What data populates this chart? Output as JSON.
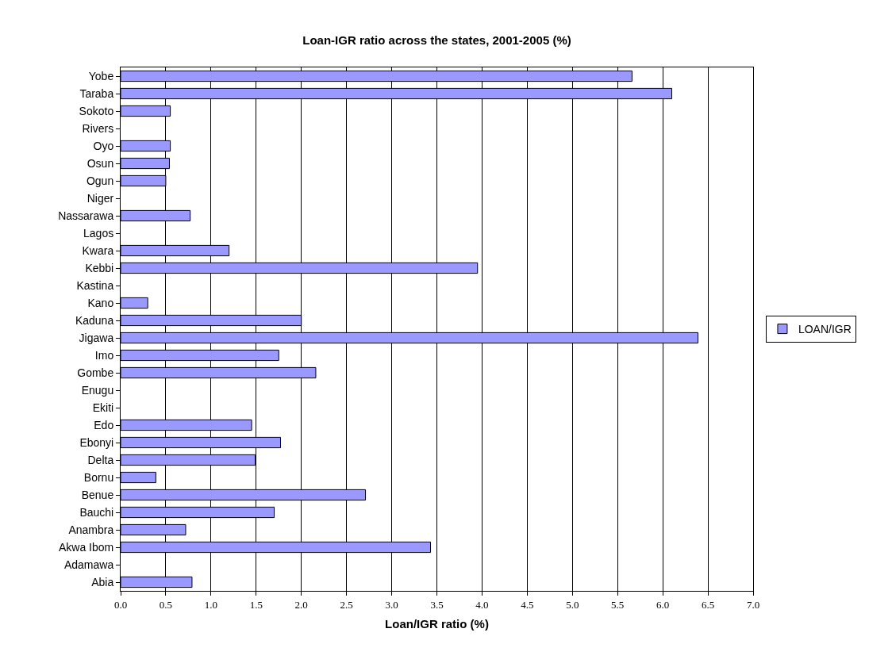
{
  "chart_data": {
    "type": "bar",
    "orientation": "horizontal",
    "title": "Loan-IGR ratio across the states, 2001-2005 (%)",
    "xlabel": "Loan/IGR ratio (%)",
    "categories": [
      "Yobe",
      "Taraba",
      "Sokoto",
      "Rivers",
      "Oyo",
      "Osun",
      "Ogun",
      "Niger",
      "Nassarawa",
      "Lagos",
      "Kwara",
      "Kebbi",
      "Kastina",
      "Kano",
      "Kaduna",
      "Jigawa",
      "Imo",
      "Gombe",
      "Enugu",
      "Ekiti",
      "Edo",
      "Ebonyi",
      "Delta",
      "Bornu",
      "Benue",
      "Bauchi",
      "Anambra",
      "Akwa Ibom",
      "Adamawa",
      "Abia"
    ],
    "series": [
      {
        "name": "LOAN/IGR",
        "color": "#9999ff",
        "values": [
          5.66,
          6.1,
          0.55,
          null,
          0.55,
          0.54,
          0.5,
          null,
          0.77,
          null,
          1.2,
          3.95,
          null,
          0.3,
          2.0,
          6.39,
          1.75,
          2.16,
          null,
          null,
          1.45,
          1.77,
          1.49,
          0.39,
          2.71,
          1.7,
          0.72,
          3.43,
          null,
          0.79
        ]
      }
    ],
    "xlim": [
      0,
      7
    ],
    "xticks": [
      {
        "value": 0,
        "label": "0.0"
      },
      {
        "value": 0.5,
        "label": "0.5"
      },
      {
        "value": 1,
        "label": "1.0"
      },
      {
        "value": 1.5,
        "label": "1.5"
      },
      {
        "value": 2,
        "label": "2.0"
      },
      {
        "value": 2.5,
        "label": "2.5"
      },
      {
        "value": 3,
        "label": "3.0"
      },
      {
        "value": 3.5,
        "label": "3.5"
      },
      {
        "value": 4,
        "label": "4.0"
      },
      {
        "value": 4.5,
        "label": "4.5"
      },
      {
        "value": 5,
        "label": "5.0"
      },
      {
        "value": 5.5,
        "label": "5.5"
      },
      {
        "value": 6,
        "label": "6.0"
      },
      {
        "value": 6.5,
        "label": "6.5"
      },
      {
        "value": 7,
        "label": "7.0"
      }
    ],
    "grid": "x",
    "legend": "right"
  }
}
